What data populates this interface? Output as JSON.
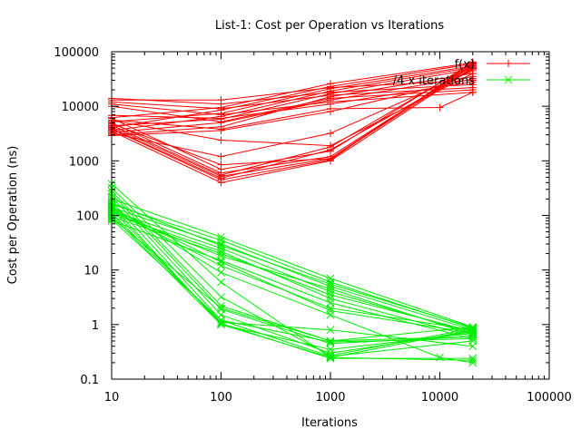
{
  "chart_data": {
    "type": "line",
    "title": "List-1: Cost per Operation vs Iterations",
    "xlabel": "Iterations",
    "ylabel": "Cost per Operation (ns)",
    "xscale": "log",
    "yscale": "log",
    "xlim": [
      10,
      100000
    ],
    "ylim": [
      0.1,
      100000
    ],
    "x_ticks": [
      10,
      100,
      1000,
      10000,
      100000
    ],
    "x_tick_labels": [
      "10",
      "100",
      "1000",
      "10000",
      "100000"
    ],
    "y_ticks": [
      0.1,
      1,
      10,
      100,
      1000,
      10000,
      100000
    ],
    "y_tick_labels": [
      "0.1",
      "1",
      "10",
      "100",
      "1000",
      "10000",
      "100000"
    ],
    "legend_position": "top-right",
    "grid": false,
    "series": [
      {
        "name": "f(x)",
        "color": "#ff0000",
        "marker": "plus",
        "lines": [
          {
            "x": [
              10,
              100,
              1000,
              20000
            ],
            "y": [
              3800,
              450,
              1050,
              62000
            ]
          },
          {
            "x": [
              10,
              100,
              1000,
              20000
            ],
            "y": [
              4200,
              520,
              1100,
              58000
            ]
          },
          {
            "x": [
              10,
              100,
              1000,
              20000
            ],
            "y": [
              5000,
              600,
              1200,
              55000
            ]
          },
          {
            "x": [
              10,
              100,
              1000,
              20000
            ],
            "y": [
              3500,
              400,
              1000,
              50000
            ]
          },
          {
            "x": [
              10,
              100,
              1000,
              20000
            ],
            "y": [
              6000,
              700,
              1500,
              65000
            ]
          },
          {
            "x": [
              10,
              100,
              1000,
              20000
            ],
            "y": [
              4500,
              550,
              1800,
              60000
            ]
          },
          {
            "x": [
              10,
              100,
              1000,
              20000
            ],
            "y": [
              3200,
              1200,
              3200,
              45000
            ]
          },
          {
            "x": [
              10,
              100,
              1000,
              20000
            ],
            "y": [
              5500,
              2400,
              1900,
              40000
            ]
          },
          {
            "x": [
              10,
              100,
              1000,
              20000
            ],
            "y": [
              4800,
              850,
              1100,
              52000
            ]
          },
          {
            "x": [
              10,
              100,
              1000,
              20000
            ],
            "y": [
              3900,
              480,
              1600,
              48000
            ]
          },
          {
            "x": [
              10,
              100,
              1000,
              20000
            ],
            "y": [
              10000,
              5200,
              14000,
              20000
            ]
          },
          {
            "x": [
              10,
              100,
              1000,
              20000
            ],
            "y": [
              12000,
              9000,
              16000,
              22000
            ]
          },
          {
            "x": [
              10,
              100,
              1000,
              20000
            ],
            "y": [
              14000,
              11000,
              18000,
              25000
            ]
          },
          {
            "x": [
              10,
              100,
              1000,
              20000
            ],
            "y": [
              11000,
              7000,
              12000,
              18000
            ]
          },
          {
            "x": [
              10,
              100,
              1000,
              20000
            ],
            "y": [
              13000,
              13000,
              22000,
              30000
            ]
          },
          {
            "x": [
              10,
              100,
              1000,
              20000
            ],
            "y": [
              3000,
              4200,
              15000,
              40000
            ]
          },
          {
            "x": [
              10,
              100,
              1000,
              20000
            ],
            "y": [
              3600,
              6500,
              19000,
              52000
            ]
          },
          {
            "x": [
              10,
              100,
              1000,
              20000
            ],
            "y": [
              4100,
              8500,
              23000,
              60000
            ]
          },
          {
            "x": [
              10,
              100,
              1000,
              20000
            ],
            "y": [
              4400,
              5800,
              17000,
              48000
            ]
          },
          {
            "x": [
              10,
              100,
              1000,
              20000
            ],
            "y": [
              5200,
              7400,
              21000,
              55000
            ]
          },
          {
            "x": [
              10,
              100,
              1000,
              20000
            ],
            "y": [
              6200,
              9500,
              26000,
              63000
            ]
          },
          {
            "x": [
              10,
              100,
              1000,
              20000
            ],
            "y": [
              3300,
              5000,
              13000,
              35000
            ]
          },
          {
            "x": [
              10,
              100,
              1000,
              10000,
              20000
            ],
            "y": [
              5600,
              3800,
              9000,
              9500,
              18000
            ]
          },
          {
            "x": [
              10,
              100,
              1000,
              20000
            ],
            "y": [
              6800,
              6000,
              11000,
              28000
            ]
          },
          {
            "x": [
              10,
              100,
              1000,
              20000
            ],
            "y": [
              2900,
              3600,
              8000,
              32000
            ]
          }
        ]
      },
      {
        "name": "/4 x iterations",
        "color": "#00ee00",
        "marker": "cross",
        "lines": [
          {
            "x": [
              10,
              100,
              1000,
              20000
            ],
            "y": [
              380,
              6,
              0.25,
              0.8
            ]
          },
          {
            "x": [
              10,
              100,
              1000,
              20000
            ],
            "y": [
              320,
              3.2,
              0.27,
              0.85
            ]
          },
          {
            "x": [
              10,
              100,
              1000,
              20000
            ],
            "y": [
              280,
              2.2,
              0.5,
              0.9
            ]
          },
          {
            "x": [
              10,
              100,
              1000,
              20000
            ],
            "y": [
              250,
              1.9,
              0.45,
              0.6
            ]
          },
          {
            "x": [
              10,
              100,
              1000,
              20000
            ],
            "y": [
              220,
              1.5,
              0.3,
              0.75
            ]
          },
          {
            "x": [
              10,
              100,
              1000,
              20000
            ],
            "y": [
              180,
              1.2,
              0.26,
              0.5
            ]
          },
          {
            "x": [
              10,
              100,
              1000,
              20000
            ],
            "y": [
              150,
              1.0,
              0.25,
              0.22
            ]
          },
          {
            "x": [
              10,
              100,
              1000,
              20000
            ],
            "y": [
              130,
              1.05,
              0.24,
              0.24
            ]
          },
          {
            "x": [
              10,
              100,
              1000,
              20000
            ],
            "y": [
              110,
              1.1,
              0.8,
              0.4
            ]
          },
          {
            "x": [
              10,
              100,
              1000,
              20000
            ],
            "y": [
              100,
              1.0,
              0.35,
              0.7
            ]
          },
          {
            "x": [
              10,
              100,
              1000,
              20000
            ],
            "y": [
              90,
              2.0,
              0.5,
              0.6
            ]
          },
          {
            "x": [
              10,
              100,
              1000,
              20000
            ],
            "y": [
              85,
              1.2,
              0.48,
              0.55
            ]
          },
          {
            "x": [
              10,
              100,
              1000,
              20000
            ],
            "y": [
              140,
              30,
              5,
              0.8
            ]
          },
          {
            "x": [
              10,
              100,
              1000,
              20000
            ],
            "y": [
              160,
              35,
              6,
              0.85
            ]
          },
          {
            "x": [
              10,
              100,
              1000,
              20000
            ],
            "y": [
              200,
              40,
              7,
              0.9
            ]
          },
          {
            "x": [
              10,
              100,
              1000,
              20000
            ],
            "y": [
              120,
              25,
              4,
              0.7
            ]
          },
          {
            "x": [
              10,
              100,
              1000,
              20000
            ],
            "y": [
              95,
              20,
              3.5,
              0.75
            ]
          },
          {
            "x": [
              10,
              100,
              1000,
              20000
            ],
            "y": [
              105,
              22,
              3,
              0.6
            ]
          },
          {
            "x": [
              10,
              100,
              1000,
              20000
            ],
            "y": [
              80,
              15,
              2.5,
              0.55
            ]
          },
          {
            "x": [
              10,
              100,
              1000,
              20000
            ],
            "y": [
              115,
              18,
              4.5,
              0.65
            ]
          },
          {
            "x": [
              10,
              100,
              1000,
              20000
            ],
            "y": [
              170,
              28,
              5.5,
              0.88
            ]
          },
          {
            "x": [
              10,
              100,
              1000,
              20000
            ],
            "y": [
              125,
              12,
              2,
              0.8
            ]
          },
          {
            "x": [
              10,
              100,
              1000,
              20000
            ],
            "y": [
              135,
              14,
              1.8,
              0.7
            ]
          },
          {
            "x": [
              10,
              100,
              1000,
              10000,
              20000
            ],
            "y": [
              145,
              9,
              1.5,
              0.25,
              0.2
            ]
          }
        ]
      }
    ]
  }
}
